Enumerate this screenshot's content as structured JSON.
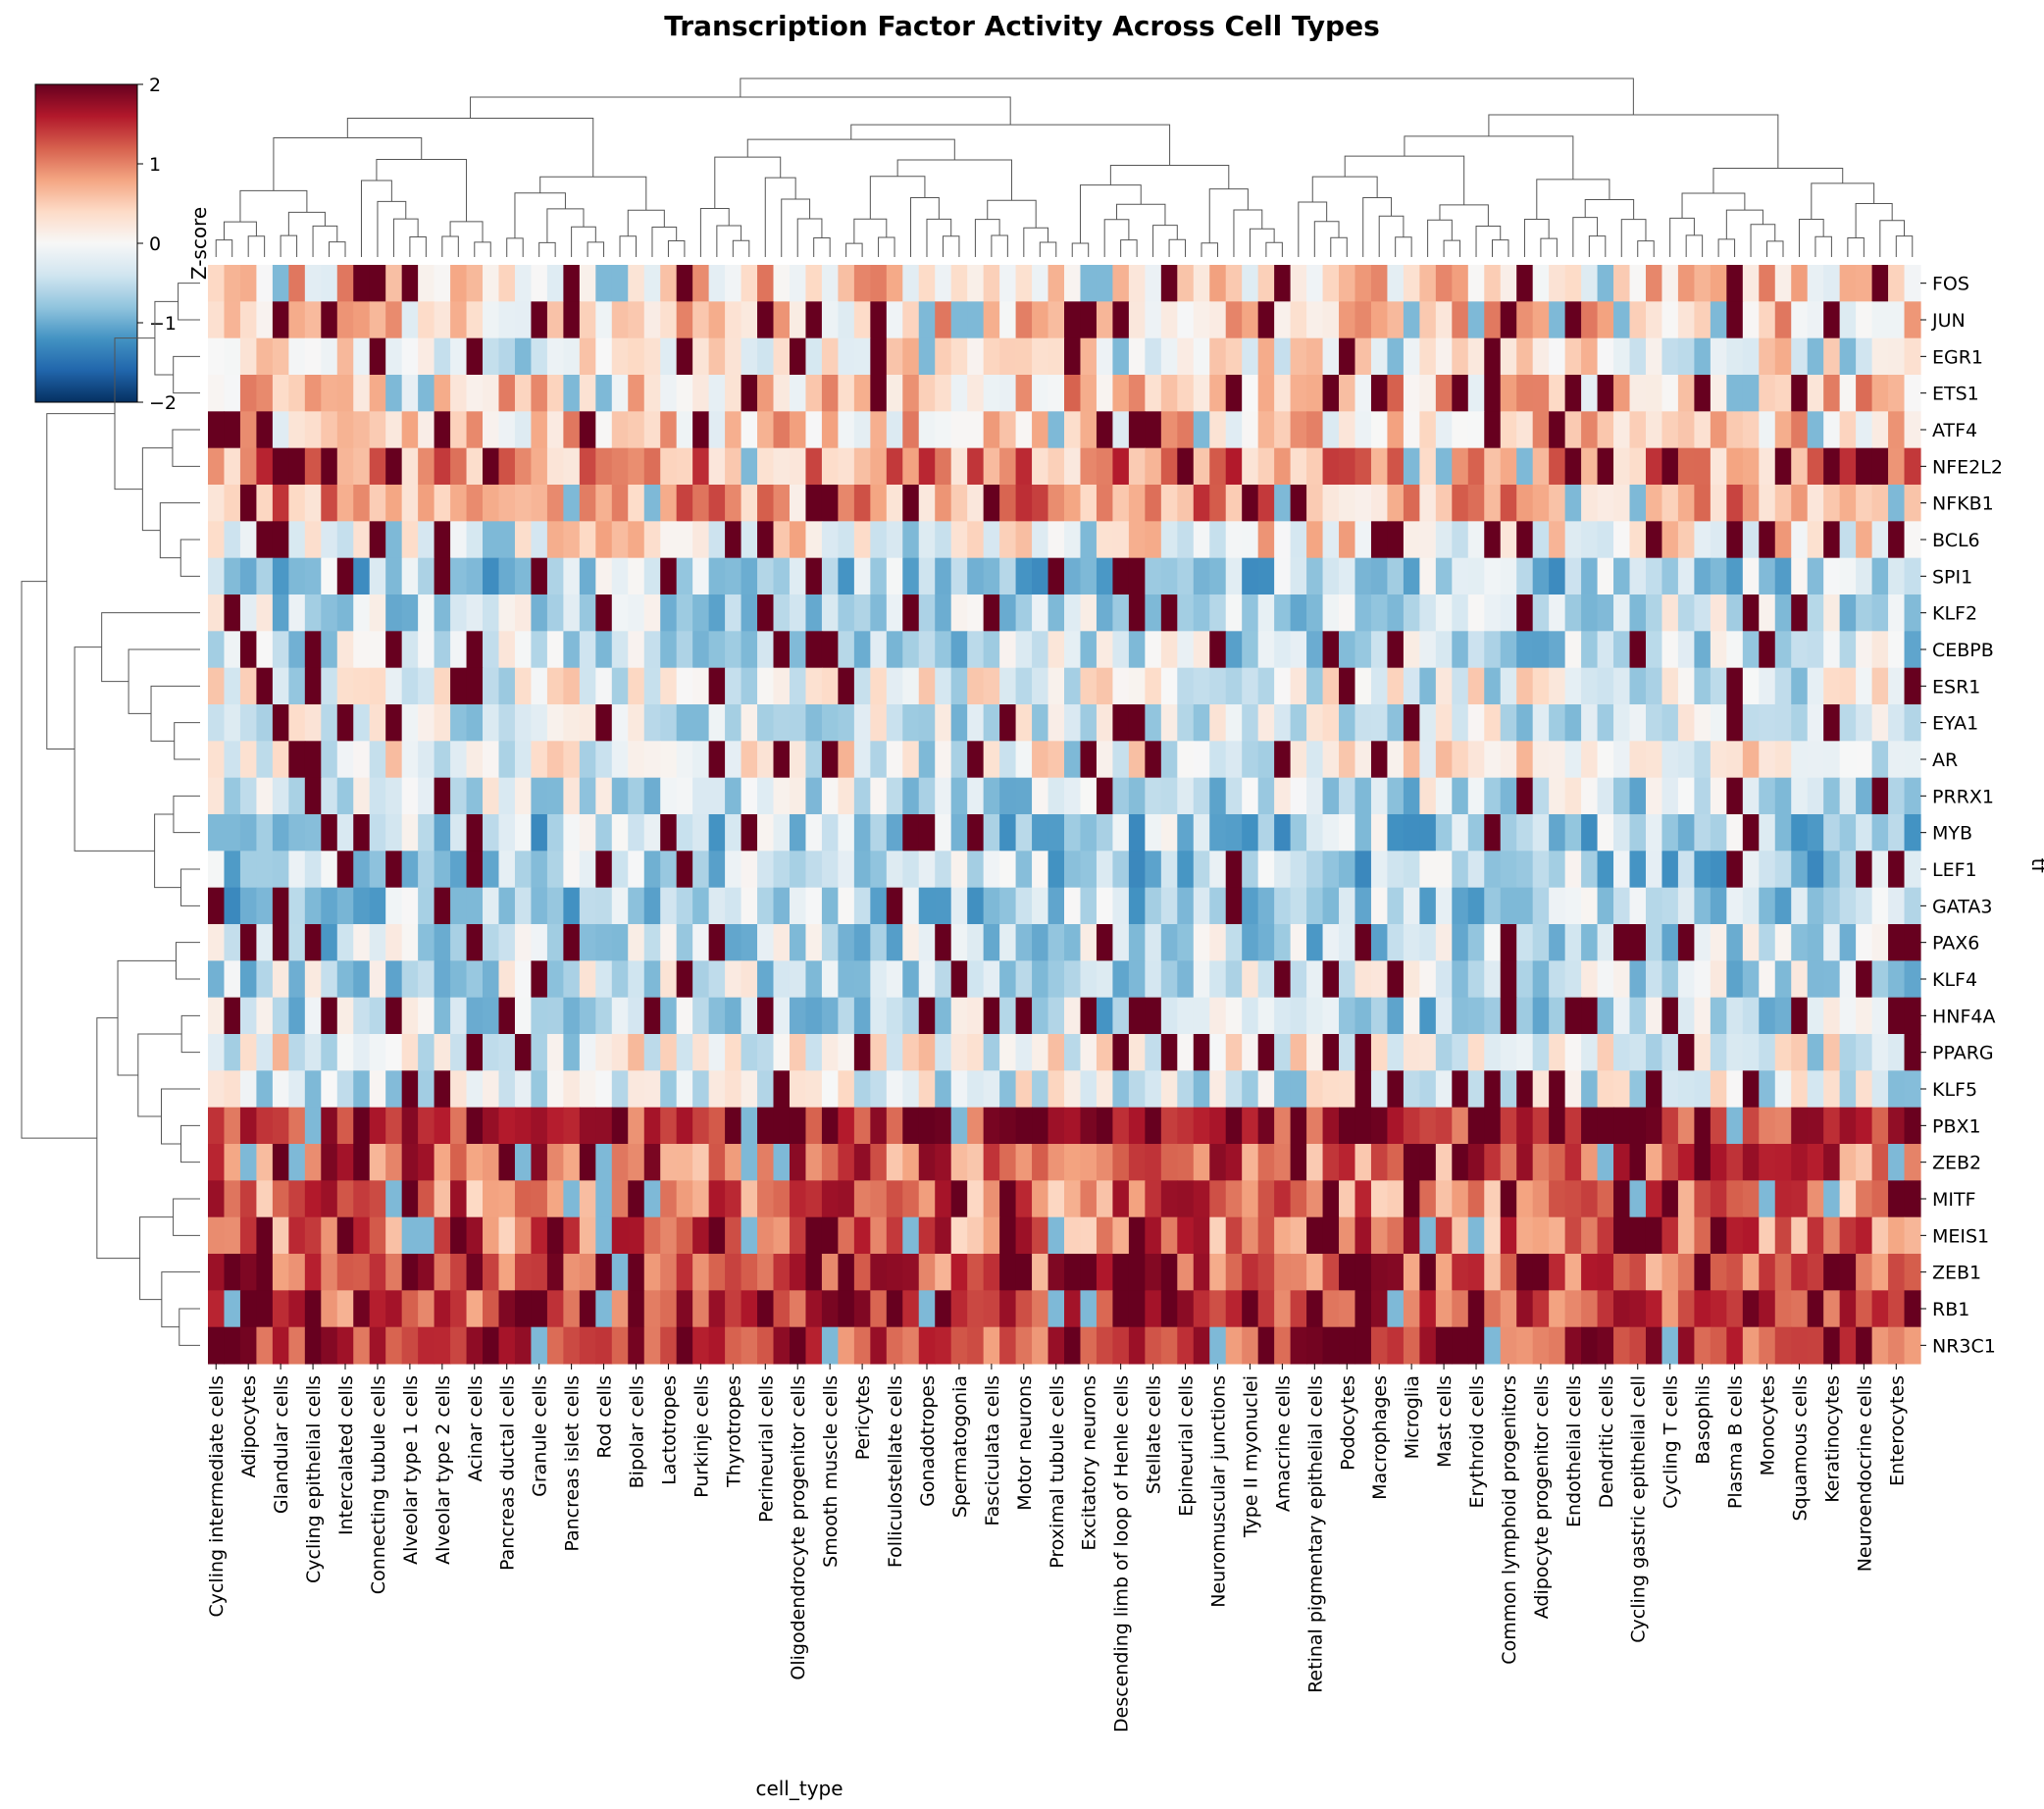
{
  "chart_data": {
    "type": "heatmap",
    "title": "Transcription Factor Activity Across Cell Types",
    "xlabel": "cell_type",
    "ylabel": "tf",
    "colorbar": {
      "label": "Z-score",
      "range": [
        -2,
        2
      ],
      "ticks": [
        2,
        1,
        0,
        -1,
        -2
      ],
      "tick_labels": [
        "2",
        "1",
        "0",
        "−1",
        "−2"
      ],
      "colormap": "RdBu_r",
      "colors": [
        "#053061",
        "#2166ac",
        "#4393c3",
        "#92c5de",
        "#d1e5f0",
        "#f7f7f7",
        "#fddbc7",
        "#f4a582",
        "#d6604d",
        "#b2182b",
        "#67001f"
      ]
    },
    "rows": [
      "FOS",
      "JUN",
      "EGR1",
      "ETS1",
      "ATF4",
      "NFE2L2",
      "NFKB1",
      "BCL6",
      "SPI1",
      "KLF2",
      "CEBPB",
      "ESR1",
      "EYA1",
      "AR",
      "PRRX1",
      "MYB",
      "LEF1",
      "GATA3",
      "PAX6",
      "KLF4",
      "HNF4A",
      "PPARG",
      "KLF5",
      "PBX1",
      "ZEB2",
      "MITF",
      "MEIS1",
      "ZEB1",
      "RB1",
      "NR3C1"
    ],
    "x_tick_labels": [
      "Cycling intermediate cells",
      "Adipocytes",
      "Glandular cells",
      "Cycling epithelial cells",
      "Intercalated cells",
      "Connecting tubule cells",
      "Alveolar type 1 cells",
      "Alveolar type 2 cells",
      "Acinar cells",
      "Pancreas ductal cells",
      "Granule cells",
      "Pancreas islet cells",
      "Rod cells",
      "Bipolar cells",
      "Lactotropes",
      "Purkinje cells",
      "Thyrotropes",
      "Perineurial cells",
      "Oligodendrocyte progenitor cells",
      "Smooth muscle cells",
      "Pericytes",
      "Folliculostellate cells",
      "Gonadotropes",
      "Spermatogonia",
      "Fasciculata cells",
      "Motor neurons",
      "Proximal tubule cells",
      "Excitatory neurons",
      "Descending limb of loop of Henle cells",
      "Stellate cells",
      "Epineurial cells",
      "Neuromuscular junctions",
      "Type II myonuclei",
      "Amacrine cells",
      "Retinal pigmentary epithelial cells",
      "Podocytes",
      "Macrophages",
      "Microglia",
      "Mast cells",
      "Erythroid cells",
      "Common lymphoid progenitors",
      "Adipocyte progenitor cells",
      "Endothelial cells",
      "Dendritic cells",
      "Cycling gastric epithelial cell",
      "Cycling T cells",
      "Basophils",
      "Plasma B cells",
      "Monocytes",
      "Squamous cells",
      "Keratinocytes",
      "Neuroendocrine cells",
      "Enterocytes"
    ],
    "num_columns": 106,
    "row_means": [
      0.4,
      0.4,
      0.1,
      0.5,
      0.4,
      0.9,
      0.8,
      0.2,
      -0.6,
      -0.4,
      -0.4,
      -0.1,
      -0.3,
      0.0,
      -0.4,
      -0.6,
      -0.6,
      -0.6,
      -0.5,
      -0.4,
      -0.5,
      0.0,
      -0.2,
      1.6,
      1.2,
      1.1,
      1.1,
      1.3,
      1.4,
      1.5
    ],
    "row_notes": "Values estimated from colour; each row has one z-score per column (106 columns, every other column labelled)."
  }
}
